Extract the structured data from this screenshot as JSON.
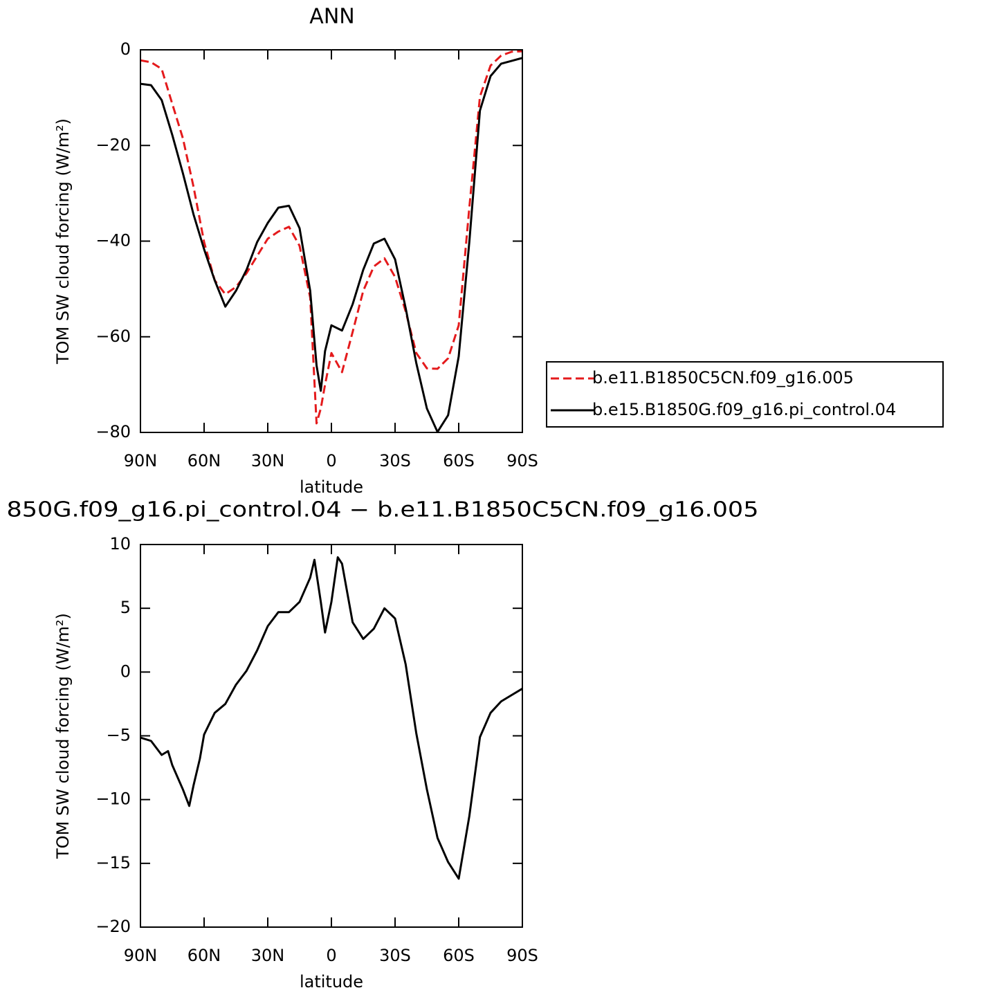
{
  "chart_data": [
    {
      "type": "line",
      "title": "ANN",
      "x_label": "latitude",
      "y_label": "TOM SW cloud forcing (W/m²)",
      "x": [
        90,
        85,
        80,
        75,
        70,
        65,
        60,
        55,
        50,
        45,
        40,
        35,
        30,
        25,
        20,
        15,
        10,
        7,
        5,
        3,
        0,
        -5,
        -10,
        -15,
        -20,
        -25,
        -30,
        -35,
        -40,
        -45,
        -50,
        -55,
        -60,
        -65,
        -70,
        -75,
        -80,
        -85,
        -90
      ],
      "series": [
        {
          "name": "b.e11.B1850C5CN.f09_g16.005",
          "color": "#e41a1c",
          "line_style": "dashed",
          "values": [
            -2.2,
            -2.6,
            -4,
            -11.3,
            -18.5,
            -28.6,
            -40.2,
            -48.2,
            -51.1,
            -49.6,
            -46.7,
            -43.1,
            -39.5,
            -38,
            -37,
            -41,
            -51.8,
            -78.1,
            -75,
            -70,
            -63.4,
            -67.4,
            -59,
            -50.4,
            -45.3,
            -43.6,
            -47.5,
            -54.7,
            -63.4,
            -66.6,
            -66.7,
            -64.5,
            -57.6,
            -33,
            -9.8,
            -3.3,
            -1.2,
            -0.4,
            -0.3
          ]
        },
        {
          "name": "b.e15.B1850G.f09_g16.pi_control.04",
          "color": "#000000",
          "line_style": "solid",
          "values": [
            -7.1,
            -7.4,
            -10.5,
            -17.8,
            -25.8,
            -34.4,
            -41.7,
            -48.2,
            -53.7,
            -50.4,
            -46,
            -40.2,
            -36.2,
            -33,
            -32.6,
            -37.3,
            -50.4,
            -66,
            -71.3,
            -63,
            -57.6,
            -58.7,
            -53.2,
            -46,
            -40.5,
            -39.5,
            -43.8,
            -54,
            -65.5,
            -75,
            -79.9,
            -76.4,
            -64.1,
            -40.2,
            -12.7,
            -5.5,
            -2.9,
            -2.3,
            -1.7
          ]
        }
      ],
      "xlim": [
        90,
        -90
      ],
      "xticks": [
        {
          "value": 90,
          "label": "90N"
        },
        {
          "value": 60,
          "label": "60N"
        },
        {
          "value": 30,
          "label": "30N"
        },
        0,
        {
          "value": -30,
          "label": "30S"
        },
        {
          "value": -60,
          "label": "60S"
        },
        {
          "value": -90,
          "label": "90S"
        }
      ],
      "ylim": [
        -80,
        0
      ],
      "yticks": [
        0,
        {
          "value": -20,
          "label": "−20"
        },
        {
          "value": -40,
          "label": "−40"
        },
        {
          "value": -60,
          "label": "−60"
        },
        {
          "value": -80,
          "label": "−80"
        }
      ],
      "legend": "right"
    },
    {
      "type": "line",
      "title": "850G.f09_g16.pi_control.04 − b.e11.B1850C5CN.f09_g16.005",
      "x_label": "latitude",
      "y_label": "TOM SW cloud forcing (W/m²)",
      "x": [
        90,
        85,
        80,
        77,
        75,
        70,
        67,
        65,
        62,
        60,
        55,
        50,
        45,
        40,
        35,
        30,
        25,
        20,
        15,
        10,
        8,
        5,
        3,
        0,
        -3,
        -5,
        -10,
        -15,
        -20,
        -25,
        -30,
        -35,
        -40,
        -45,
        -50,
        -55,
        -60,
        -65,
        -70,
        -75,
        -80,
        -85,
        -90
      ],
      "series": [
        {
          "color": "#000000",
          "line_style": "solid",
          "values": [
            -5.14,
            -5.4,
            -6.5,
            -6.2,
            -7.3,
            -9.2,
            -10.5,
            -8.9,
            -6.8,
            -4.9,
            -3.2,
            -2.5,
            -1,
            0.1,
            1.7,
            3.6,
            4.7,
            4.7,
            5.5,
            7.4,
            8.8,
            5.5,
            3.1,
            5.5,
            9,
            8.5,
            3.9,
            2.6,
            3.4,
            5,
            4.2,
            0.6,
            -4.8,
            -9.2,
            -13,
            -14.9,
            -16.2,
            -11.3,
            -5.1,
            -3.2,
            -2.3,
            -1.8,
            -1.3
          ]
        }
      ],
      "xlim": [
        90,
        -90
      ],
      "xticks": [
        {
          "value": 90,
          "label": "90N"
        },
        {
          "value": 60,
          "label": "60N"
        },
        {
          "value": 30,
          "label": "30N"
        },
        0,
        {
          "value": -30,
          "label": "30S"
        },
        {
          "value": -60,
          "label": "60S"
        },
        {
          "value": -90,
          "label": "90S"
        }
      ],
      "ylim": [
        -20,
        10
      ],
      "yticks": [
        10,
        5,
        0,
        {
          "value": -5,
          "label": "−5"
        },
        {
          "value": -10,
          "label": "−10"
        },
        {
          "value": -15,
          "label": "−15"
        },
        {
          "value": -20,
          "label": "−20"
        }
      ]
    }
  ]
}
